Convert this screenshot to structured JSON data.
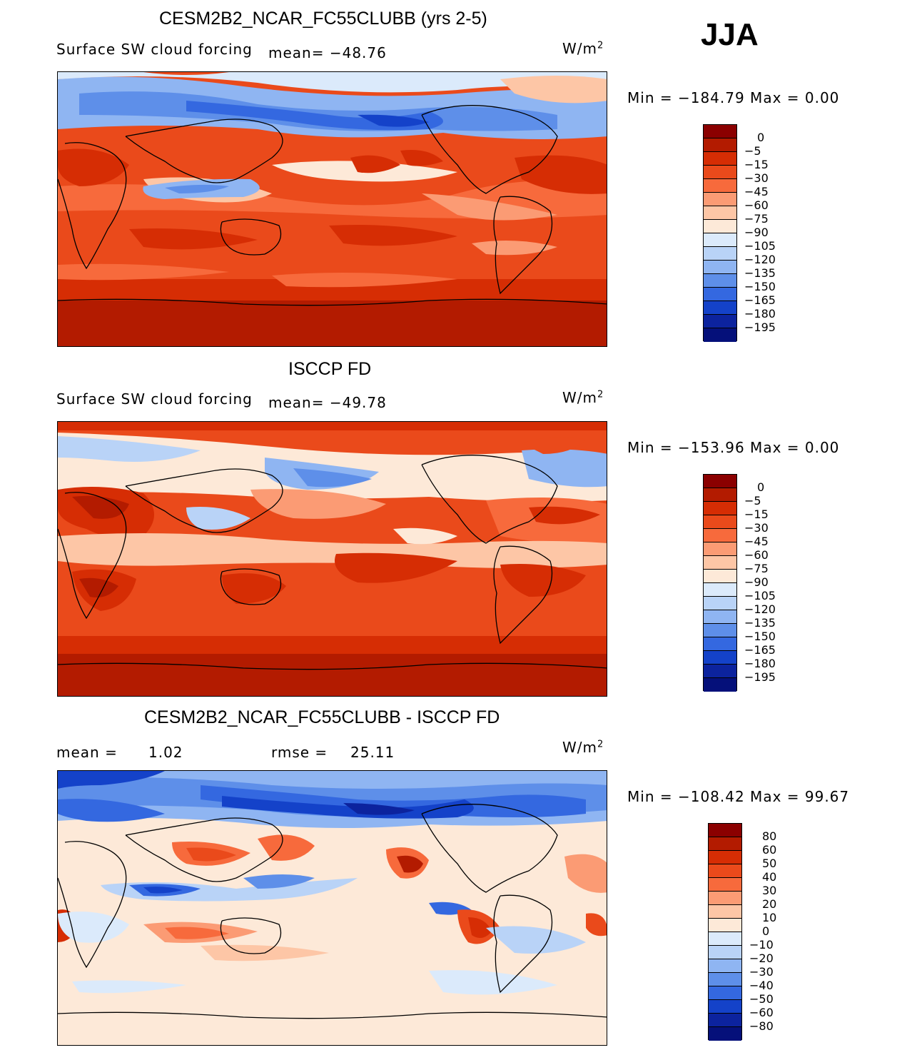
{
  "season": "JJA",
  "units": "W/m",
  "units_exp": "2",
  "panels": [
    {
      "title": "CESM2B2_NCAR_FC55CLUBB (yrs 2-5)",
      "subtitle": "Surface SW cloud forcing",
      "mean_text": "mean= −48.76",
      "min_max": "Min = −184.79 Max =    0.00"
    },
    {
      "title": "ISCCP FD",
      "subtitle": "Surface SW cloud forcing",
      "mean_text": "mean= −49.78",
      "min_max": "Min = −153.96 Max =    0.00"
    },
    {
      "title": "CESM2B2_NCAR_FC55CLUBB - ISCCP FD",
      "mean_label": "mean =",
      "mean_value": "1.02",
      "rmse_label": "rmse =",
      "rmse_value": "25.11",
      "min_max": "Min = −108.42 Max =   99.67"
    }
  ],
  "colorbar_main": {
    "labels": [
      "0",
      "−5",
      "−15",
      "−30",
      "−45",
      "−60",
      "−75",
      "−90",
      "−105",
      "−120",
      "−135",
      "−150",
      "−165",
      "−180",
      "−195"
    ],
    "colors": [
      "#8b0000",
      "#b31b00",
      "#d62d04",
      "#ea4a1b",
      "#f76a3c",
      "#fb9b74",
      "#fdc6a6",
      "#fde9d8",
      "#dbeafb",
      "#b9d3f7",
      "#8fb5f2",
      "#5e8fe9",
      "#3468e0",
      "#1442c9",
      "#0c239e",
      "#05107a"
    ]
  },
  "colorbar_diff": {
    "labels": [
      "80",
      "60",
      "50",
      "40",
      "30",
      "20",
      "10",
      "0",
      "−10",
      "−20",
      "−30",
      "−40",
      "−50",
      "−60",
      "−80"
    ],
    "colors": [
      "#8b0000",
      "#b31b00",
      "#d62d04",
      "#ea4a1b",
      "#f76a3c",
      "#fb9b74",
      "#fdc6a6",
      "#fde9d8",
      "#dbeafb",
      "#b9d3f7",
      "#8fb5f2",
      "#5e8fe9",
      "#3468e0",
      "#1442c9",
      "#0c239e",
      "#05107a"
    ]
  }
}
